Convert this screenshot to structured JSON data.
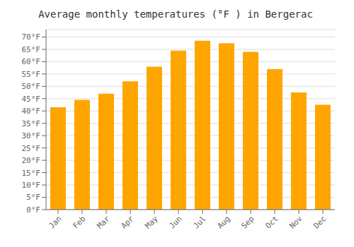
{
  "chart_data": {
    "type": "bar",
    "title": "Average monthly temperatures (°F ) in Bergerac",
    "categories": [
      "Jan",
      "Feb",
      "Mar",
      "Apr",
      "May",
      "Jun",
      "Jul",
      "Aug",
      "Sep",
      "Oct",
      "Nov",
      "Dec"
    ],
    "values": [
      41.5,
      44.5,
      47.0,
      52.0,
      58.0,
      64.5,
      68.5,
      67.5,
      64.0,
      57.0,
      47.5,
      42.5
    ],
    "color": "#FFA500",
    "ylim": [
      0,
      73
    ],
    "yticks": [
      {
        "value": 0,
        "label": "0°F"
      },
      {
        "value": 5,
        "label": "5°F"
      },
      {
        "value": 10,
        "label": "10°F"
      },
      {
        "value": 15,
        "label": "15°F"
      },
      {
        "value": 20,
        "label": "20°F"
      },
      {
        "value": 25,
        "label": "25°F"
      },
      {
        "value": 30,
        "label": "30°F"
      },
      {
        "value": 35,
        "label": "35°F"
      },
      {
        "value": 40,
        "label": "40°F"
      },
      {
        "value": 45,
        "label": "45°F"
      },
      {
        "value": 50,
        "label": "50°F"
      },
      {
        "value": 55,
        "label": "55°F"
      },
      {
        "value": 60,
        "label": "60°F"
      },
      {
        "value": 65,
        "label": "65°F"
      },
      {
        "value": 70,
        "label": "70°F"
      }
    ],
    "grid": true
  }
}
